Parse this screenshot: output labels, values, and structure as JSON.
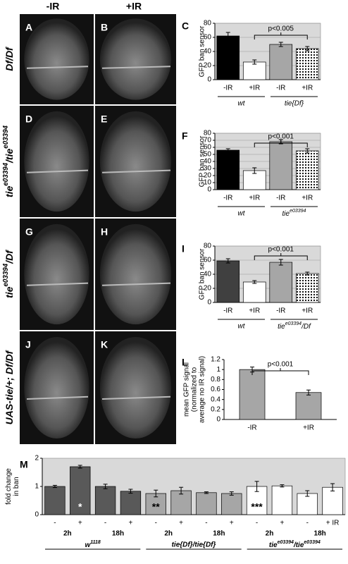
{
  "column_headers": [
    "-IR",
    "+IR"
  ],
  "row_labels": [
    [
      {
        "text": "Df/Df"
      }
    ],
    [
      {
        "text": "tie"
      },
      {
        "sup": "e03394"
      },
      {
        "text": "/tie"
      },
      {
        "sup": "e03394"
      }
    ],
    [
      {
        "text": "tie"
      },
      {
        "sup": "e03394"
      },
      {
        "text": "/Df"
      }
    ],
    [
      {
        "text": "UAS-tie/+; Df/Df"
      }
    ]
  ],
  "panels": [
    "A",
    "B",
    "D",
    "E",
    "G",
    "H",
    "J",
    "K"
  ],
  "chart_data": [
    {
      "type": "bar",
      "panel": "C",
      "ylabel": "GFP ban sensor",
      "background": "#d9d9d9",
      "grid": true,
      "categories": [
        "-IR",
        "+IR",
        "-IR",
        "+IR"
      ],
      "group_labels": [
        "wt",
        "tie{Df}"
      ],
      "values": [
        62,
        25,
        50,
        44
      ],
      "errors": [
        5,
        3,
        3,
        3
      ],
      "fills": [
        "#000000",
        "#ffffff",
        "#a6a6a6",
        "dots"
      ],
      "ylim": [
        0,
        80
      ],
      "yticks": [
        0,
        20,
        40,
        60,
        80
      ],
      "annotation": "p<0.005"
    },
    {
      "type": "bar",
      "panel": "F",
      "ylabel": "GFP ban sensor",
      "background": "#d9d9d9",
      "grid": true,
      "categories": [
        "-IR",
        "+IR",
        "-IR",
        "+IR"
      ],
      "group_labels": [
        "wt",
        [
          {
            "text": "tie"
          },
          {
            "sup": "e03394"
          }
        ]
      ],
      "values": [
        56,
        27,
        68,
        55
      ],
      "errors": [
        2,
        4,
        3,
        3
      ],
      "fills": [
        "#000000",
        "#ffffff",
        "#a6a6a6",
        "dots"
      ],
      "ylim": [
        0,
        80
      ],
      "yticks": [
        0,
        10,
        20,
        30,
        40,
        50,
        60,
        70,
        80
      ],
      "annotation": "p<0.001"
    },
    {
      "type": "bar",
      "panel": "I",
      "ylabel": "GFP  ban sensor",
      "background": "#d9d9d9",
      "grid": true,
      "categories": [
        "-IR",
        "+IR",
        "-IR",
        "+IR"
      ],
      "group_labels": [
        "wt",
        [
          {
            "text": "tie"
          },
          {
            "sup": "e03394"
          },
          {
            "text": "/Df"
          }
        ]
      ],
      "values": [
        59,
        29,
        57,
        41
      ],
      "errors": [
        3,
        2,
        4,
        2
      ],
      "fills": [
        "#404040",
        "#ffffff",
        "#a6a6a6",
        "dots"
      ],
      "ylim": [
        0,
        80
      ],
      "yticks": [
        0,
        20,
        40,
        60,
        80
      ],
      "annotation": "p<0.001"
    },
    {
      "type": "bar",
      "panel": "L",
      "ylabel": [
        "mean GFP signal",
        "(normalized to",
        "average no IR signal)"
      ],
      "background": "#ffffff",
      "grid": false,
      "categories": [
        "-IR",
        "+IR"
      ],
      "values": [
        1.0,
        0.54
      ],
      "errors": [
        0.05,
        0.05
      ],
      "fills": [
        "#a6a6a6",
        "#a6a6a6"
      ],
      "ylim": [
        0,
        1.2
      ],
      "yticks": [
        0,
        0.2,
        0.4,
        0.6,
        0.8,
        1,
        1.2
      ],
      "annotation": "p<0.001"
    },
    {
      "type": "bar",
      "panel": "M",
      "ylabel": [
        "fold change",
        "in ban"
      ],
      "background": "#d9d9d9",
      "grid": false,
      "categories": [
        "-",
        "+",
        "-",
        "+",
        "-",
        "+",
        "-",
        "+",
        "-",
        "+",
        "-",
        "+ IR"
      ],
      "time_labels": [
        "2h",
        "18h",
        "2h",
        "18h",
        "2h",
        "18h"
      ],
      "group_labels": [
        [
          {
            "text": "w"
          },
          {
            "sup": "1118"
          }
        ],
        "tie{Df}/tie{Df}",
        [
          {
            "text": "tie"
          },
          {
            "sup": "e03394"
          },
          {
            "text": "/tie"
          },
          {
            "sup": "e03394"
          }
        ]
      ],
      "values": [
        1.0,
        1.7,
        1.0,
        0.83,
        0.75,
        0.85,
        0.78,
        0.75,
        1.0,
        1.02,
        0.75,
        0.97
      ],
      "errors": [
        0.04,
        0.05,
        0.08,
        0.07,
        0.12,
        0.12,
        0.03,
        0.06,
        0.18,
        0.04,
        0.1,
        0.13
      ],
      "fills": [
        "#595959",
        "#595959",
        "#595959",
        "#595959",
        "#a6a6a6",
        "#a6a6a6",
        "#a6a6a6",
        "#a6a6a6",
        "#ffffff",
        "#ffffff",
        "#ffffff",
        "#ffffff"
      ],
      "bar_annotations": [
        null,
        "*",
        null,
        null,
        "**",
        null,
        null,
        null,
        "***",
        null,
        null,
        null
      ],
      "ylim": [
        0,
        2
      ],
      "yticks": [
        0,
        1,
        2
      ]
    }
  ]
}
